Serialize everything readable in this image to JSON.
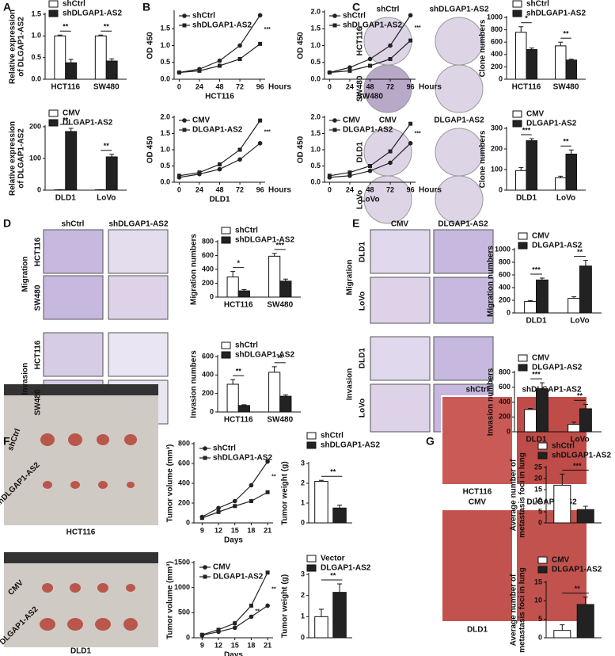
{
  "panel_letters": [
    "A",
    "B",
    "C",
    "D",
    "E",
    "F",
    "G"
  ],
  "image_labels": [
    "shCtrl",
    "shDLGAP1-AS2",
    "HCT116",
    "SW480",
    "CMV",
    "DLGAP1-AS2",
    "DLD1",
    "LoVo",
    "shCtrl",
    "shDLGAP1-AS2",
    "HCT116",
    "SW480",
    "Migration",
    "HCT116",
    "SW480",
    "Invasion",
    "CMV",
    "DLGAP1-AS2",
    "DLD1",
    "LoVo",
    "Migration",
    "DLD1",
    "LoVo",
    "Invasion",
    "shCtrl",
    "shDLGAP1-AS2",
    "HCT116",
    "CMV",
    "DLGAP1-AS2",
    "DLD1",
    "shCtrl",
    "shDLGAP1-AS2",
    "HCT116",
    "CMV",
    "DLGAP1-AS2",
    "DLD1"
  ],
  "chart_data": [
    {
      "type": "bar",
      "ylabel": [
        "Relative expression",
        "of DLGAP1-AS2"
      ],
      "categories": [
        "HCT116",
        "SW480"
      ],
      "series": [
        {
          "name": "shCtrl",
          "color": "#ffffff",
          "values": [
            1,
            1
          ],
          "errors": [
            0.02,
            0.02
          ]
        },
        {
          "name": "shDLGAP1-AS2",
          "color": "#222222",
          "values": [
            0.38,
            0.42
          ],
          "errors": [
            0.08,
            0.05
          ]
        }
      ],
      "ylim": [
        0,
        1.5
      ],
      "yticks": [
        {
          "value": 0,
          "label": "0.0"
        },
        {
          "value": 0.5,
          "label": "0.5"
        },
        {
          "value": 1,
          "label": "1.0"
        },
        {
          "value": 1.5,
          "label": "1.5"
        }
      ],
      "annotations": [
        "**",
        "**"
      ]
    },
    {
      "type": "bar",
      "ylabel": [
        "Relative expression",
        "of DLGAP1-AS2"
      ],
      "categories": [
        "DLD1",
        "LoVo"
      ],
      "series": [
        {
          "name": "CMV",
          "color": "#ffffff",
          "values": [
            1,
            1
          ],
          "errors": [
            0.5,
            0.5
          ]
        },
        {
          "name": "DLGAP1-AS2",
          "color": "#222222",
          "values": [
            185,
            105
          ],
          "errors": [
            10,
            8
          ]
        }
      ],
      "ylim": [
        0,
        200
      ],
      "yticks": [
        0,
        100,
        200
      ],
      "annotations": [
        "**",
        "**"
      ]
    },
    {
      "type": "line",
      "ylabel": "OD 450",
      "xlabel": "Hours",
      "caption": "HCT116",
      "x": [
        0,
        24,
        48,
        72,
        96
      ],
      "xlim": [
        -6,
        102
      ],
      "xticks": [
        0,
        24,
        48,
        72,
        96
      ],
      "series": [
        {
          "name": "shCtrl",
          "color": "#222222",
          "marker": "circle",
          "values": [
            0.2,
            0.3,
            0.55,
            1.0,
            1.9
          ]
        },
        {
          "name": "shDLGAP1-AS2",
          "color": "#222222",
          "marker": "square",
          "values": [
            0.2,
            0.25,
            0.4,
            0.6,
            1.05
          ]
        }
      ],
      "ylim": [
        0,
        2
      ],
      "yticks": [
        {
          "value": 0,
          "label": "0.0"
        },
        {
          "value": 0.5,
          "label": "0.5"
        },
        {
          "value": 1,
          "label": "1.0"
        },
        {
          "value": 1.5,
          "label": "1.5"
        }
      ],
      "annotations": [
        "***"
      ]
    },
    {
      "type": "line",
      "ylabel": "OD 450",
      "xlabel": "Hours",
      "caption": "SW480",
      "x": [
        0,
        24,
        48,
        72,
        96
      ],
      "xlim": [
        -6,
        102
      ],
      "xticks": [
        0,
        24,
        48,
        72,
        96
      ],
      "series": [
        {
          "name": "shCtrl",
          "color": "#222222",
          "marker": "circle",
          "values": [
            0.2,
            0.35,
            0.6,
            1.0,
            1.9
          ]
        },
        {
          "name": "shDLGAP1-AS2",
          "color": "#222222",
          "marker": "square",
          "values": [
            0.2,
            0.25,
            0.4,
            0.6,
            1.15
          ]
        }
      ],
      "ylim": [
        0,
        2
      ],
      "yticks": [
        {
          "value": 0,
          "label": "0.0"
        },
        {
          "value": 0.5,
          "label": "0.5"
        },
        {
          "value": 1,
          "label": "1.0"
        },
        {
          "value": 1.5,
          "label": "1.5"
        },
        {
          "value": 2,
          "label": "2.0"
        }
      ],
      "annotations": [
        "***"
      ]
    },
    {
      "type": "line",
      "ylabel": "OD 450",
      "xlabel": "Hours",
      "caption": "DLD1",
      "x": [
        0,
        24,
        48,
        72,
        96
      ],
      "xlim": [
        -6,
        102
      ],
      "xticks": [
        0,
        24,
        48,
        72,
        96
      ],
      "series": [
        {
          "name": "CMV",
          "color": "#222222",
          "marker": "circle",
          "values": [
            0.15,
            0.25,
            0.4,
            0.7,
            1.2
          ]
        },
        {
          "name": "DLGAP1-AS2",
          "color": "#222222",
          "marker": "square",
          "values": [
            0.2,
            0.3,
            0.55,
            1.0,
            1.9
          ]
        }
      ],
      "ylim": [
        0,
        2
      ],
      "yticks": [
        {
          "value": 0,
          "label": "0.0"
        },
        {
          "value": 0.5,
          "label": "0.5"
        },
        {
          "value": 1,
          "label": "1.0"
        },
        {
          "value": 1.5,
          "label": "1.5"
        },
        {
          "value": 2,
          "label": "2.0"
        }
      ],
      "annotations": [
        "***"
      ]
    },
    {
      "type": "line",
      "ylabel": "OD 450",
      "xlabel": "Hours",
      "caption": "LoVo",
      "x": [
        0,
        24,
        48,
        72,
        96
      ],
      "xlim": [
        -6,
        102
      ],
      "xticks": [
        0,
        24,
        48,
        72,
        96
      ],
      "series": [
        {
          "name": "CMV",
          "color": "#222222",
          "marker": "circle",
          "values": [
            0.15,
            0.2,
            0.35,
            0.6,
            1.2
          ]
        },
        {
          "name": "DLGAP1-AS2",
          "color": "#222222",
          "marker": "square",
          "values": [
            0.2,
            0.3,
            0.5,
            0.95,
            1.8
          ]
        }
      ],
      "ylim": [
        0,
        2
      ],
      "yticks": [
        {
          "value": 0,
          "label": "0.0"
        },
        {
          "value": 0.5,
          "label": "0.5"
        },
        {
          "value": 1,
          "label": "1.0"
        },
        {
          "value": 1.5,
          "label": "1.5"
        },
        {
          "value": 2,
          "label": "2.0"
        }
      ],
      "annotations": [
        "***"
      ]
    },
    {
      "type": "bar",
      "ylabel": "Clone numbers",
      "categories": [
        "HCT116",
        "SW480"
      ],
      "series": [
        {
          "name": "shCtrl",
          "color": "#ffffff",
          "values": [
            760,
            540
          ],
          "errors": [
            90,
            60
          ]
        },
        {
          "name": "shDLGAP1-AS2",
          "color": "#222222",
          "values": [
            480,
            310
          ],
          "errors": [
            25,
            15
          ]
        }
      ],
      "ylim": [
        0,
        1000
      ],
      "yticks": [
        0,
        200,
        400,
        600,
        800,
        1000
      ],
      "annotations": [
        "*",
        "**"
      ]
    },
    {
      "type": "bar",
      "ylabel": "Clone numbers",
      "categories": [
        "DLD1",
        "LoVo"
      ],
      "series": [
        {
          "name": "CMV",
          "color": "#ffffff",
          "values": [
            95,
            60
          ],
          "errors": [
            15,
            8
          ]
        },
        {
          "name": "DLGAP1-AS2",
          "color": "#222222",
          "values": [
            240,
            175
          ],
          "errors": [
            10,
            20
          ]
        }
      ],
      "ylim": [
        0,
        300
      ],
      "yticks": [
        0,
        100,
        200,
        300
      ],
      "annotations": [
        "***",
        "**"
      ]
    },
    {
      "type": "bar",
      "ylabel": "Migration numbers",
      "categories": [
        "HCT116",
        "SW480"
      ],
      "series": [
        {
          "name": "shCtrl",
          "color": "#ffffff",
          "values": [
            290,
            590
          ],
          "errors": [
            80,
            40
          ]
        },
        {
          "name": "shDLGAP1-AS2",
          "color": "#222222",
          "values": [
            90,
            230
          ],
          "errors": [
            20,
            30
          ]
        }
      ],
      "ylim": [
        0,
        800
      ],
      "yticks": [
        0,
        200,
        400,
        600,
        800
      ],
      "annotations": [
        "*",
        "***"
      ]
    },
    {
      "type": "bar",
      "ylabel": "Invasion numbers",
      "categories": [
        "HCT116",
        "SW480"
      ],
      "series": [
        {
          "name": "shCtrl",
          "color": "#ffffff",
          "values": [
            300,
            430
          ],
          "errors": [
            50,
            60
          ]
        },
        {
          "name": "shDLGAP1-AS2",
          "color": "#222222",
          "values": [
            70,
            170
          ],
          "errors": [
            8,
            15
          ]
        }
      ],
      "ylim": [
        0,
        600
      ],
      "yticks": [
        0,
        200,
        400,
        600
      ],
      "annotations": [
        "**",
        "**"
      ]
    },
    {
      "type": "bar",
      "ylabel": "Migration numbers",
      "categories": [
        "DLD1",
        "LoVo"
      ],
      "series": [
        {
          "name": "CMV",
          "color": "#ffffff",
          "values": [
            180,
            230
          ],
          "errors": [
            15,
            25
          ]
        },
        {
          "name": "DLGAP1-AS2",
          "color": "#222222",
          "values": [
            520,
            740
          ],
          "errors": [
            30,
            90
          ]
        }
      ],
      "ylim": [
        0,
        1000
      ],
      "yticks": [
        0,
        200,
        400,
        600,
        800,
        1000
      ],
      "annotations": [
        "***",
        "**"
      ]
    },
    {
      "type": "bar",
      "ylabel": "Invasion numbers",
      "categories": [
        "DLD1",
        "LoVo"
      ],
      "series": [
        {
          "name": "CMV",
          "color": "#ffffff",
          "values": [
            300,
            100
          ],
          "errors": [
            15,
            30
          ]
        },
        {
          "name": "DLGAP1-AS2",
          "color": "#222222",
          "values": [
            580,
            310
          ],
          "errors": [
            80,
            60
          ]
        }
      ],
      "ylim": [
        0,
        800
      ],
      "yticks": [
        0,
        200,
        400,
        600,
        800
      ],
      "annotations": [
        "***",
        "**"
      ]
    },
    {
      "type": "line",
      "ylabel": "Tumor volume (mm³)",
      "xlabel": "Days",
      "x": [
        9,
        12,
        15,
        18,
        21
      ],
      "xlim": [
        7.5,
        22
      ],
      "xticks": [
        9,
        12,
        15,
        18,
        21
      ],
      "series": [
        {
          "name": "shCtrl",
          "color": "#222222",
          "marker": "circle",
          "values": [
            60,
            150,
            220,
            380,
            620
          ]
        },
        {
          "name": "shDLGAP1-AS2",
          "color": "#222222",
          "marker": "square",
          "values": [
            50,
            110,
            170,
            220,
            310
          ]
        }
      ],
      "ylim": [
        0,
        800
      ],
      "yticks": [
        0,
        200,
        400,
        600,
        800
      ],
      "annotations": [
        "**"
      ]
    },
    {
      "type": "bar",
      "ylabel": "Tumor weight (g)",
      "categories": [
        null
      ],
      "series": [
        {
          "name": "shCtrl",
          "color": "#ffffff",
          "values": [
            2.1
          ],
          "errors": [
            0.05
          ]
        },
        {
          "name": "shDLGAP1-AS2",
          "color": "#222222",
          "values": [
            0.75
          ],
          "errors": [
            0.15
          ]
        }
      ],
      "ylim": [
        0,
        3
      ],
      "yticks": [
        0,
        1,
        2,
        3
      ],
      "annotations": [
        "**"
      ]
    },
    {
      "type": "line",
      "ylabel": "Tumor volume (mm³)",
      "xlabel": "Days",
      "x": [
        9,
        12,
        15,
        18,
        21
      ],
      "xlim": [
        7.5,
        22
      ],
      "xticks": [
        9,
        12,
        15,
        18,
        21
      ],
      "series": [
        {
          "name": "CMV",
          "color": "#222222",
          "marker": "circle",
          "values": [
            50,
            120,
            200,
            420,
            640
          ]
        },
        {
          "name": "DLGAP1-AS2",
          "color": "#222222",
          "marker": "square",
          "values": [
            60,
            160,
            290,
            640,
            1300
          ]
        }
      ],
      "ylim": [
        0,
        1500
      ],
      "yticks": [
        0,
        500,
        1000,
        1500
      ],
      "annotations": [
        "**",
        "**"
      ]
    },
    {
      "type": "bar",
      "ylabel": "Tumor weight (g)",
      "categories": [
        null
      ],
      "series": [
        {
          "name": "Vector",
          "color": "#ffffff",
          "values": [
            1.0
          ],
          "errors": [
            0.35
          ]
        },
        {
          "name": "DLGAP1-AS2",
          "color": "#222222",
          "values": [
            2.15
          ],
          "errors": [
            0.4
          ]
        }
      ],
      "ylim": [
        0,
        3
      ],
      "yticks": [
        0,
        1,
        2,
        3
      ],
      "annotations": [
        "**"
      ]
    },
    {
      "type": "bar",
      "ylabel": [
        "Average number of",
        "metastasis foci in lung"
      ],
      "categories": [
        null
      ],
      "series": [
        {
          "name": "shCtrl",
          "color": "#ffffff",
          "values": [
            17
          ],
          "errors": [
            5
          ]
        },
        {
          "name": "shDLGAP1-AS2",
          "color": "#222222",
          "values": [
            6
          ],
          "errors": [
            1.5
          ]
        }
      ],
      "ylim": [
        0,
        25
      ],
      "yticks": [
        0,
        5,
        10,
        15,
        20,
        25
      ],
      "annotations": [
        "***"
      ]
    },
    {
      "type": "bar",
      "ylabel": [
        "Average number of",
        "metastasis foci in lung"
      ],
      "categories": [
        null
      ],
      "series": [
        {
          "name": "CMV",
          "color": "#ffffff",
          "values": [
            2
          ],
          "errors": [
            1.5
          ]
        },
        {
          "name": "DLGAP1-AS2",
          "color": "#222222",
          "values": [
            9
          ],
          "errors": [
            2
          ]
        }
      ],
      "ylim": [
        0,
        15
      ],
      "yticks": [
        0,
        5,
        10,
        15
      ],
      "annotations": [
        "**"
      ]
    }
  ]
}
